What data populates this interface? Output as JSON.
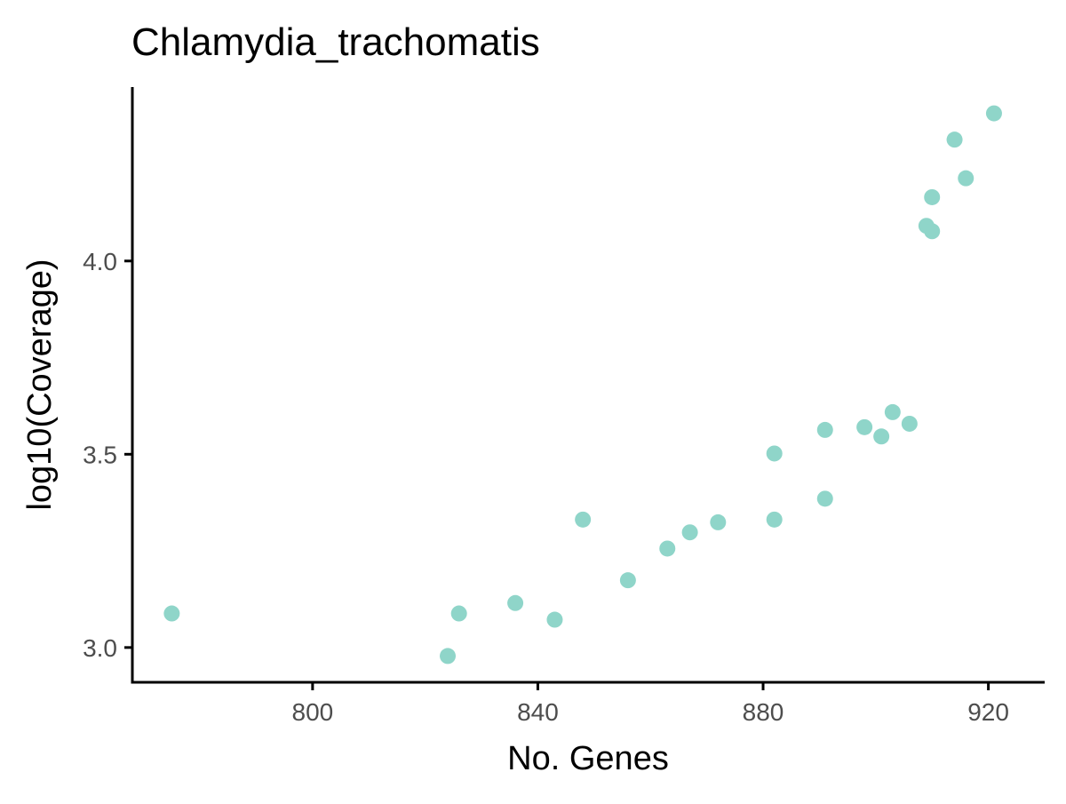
{
  "chart_data": {
    "type": "scatter",
    "title": "Chlamydia_trachomatis",
    "xlabel": "No. Genes",
    "ylabel": "log10(Coverage)",
    "xlim": [
      768,
      930
    ],
    "ylim": [
      2.91,
      4.45
    ],
    "x_ticks": [
      800,
      840,
      880,
      920
    ],
    "y_ticks": [
      3.0,
      3.5,
      4.0
    ],
    "x_tick_labels": [
      "800",
      "840",
      "880",
      "920"
    ],
    "y_tick_labels": [
      "3.0",
      "3.5",
      "4.0"
    ],
    "grid": false,
    "legend": "none",
    "point_color": "#8fd5c9",
    "points": [
      {
        "x": 775,
        "y": 3.088
      },
      {
        "x": 824,
        "y": 2.978
      },
      {
        "x": 826,
        "y": 3.088
      },
      {
        "x": 836,
        "y": 3.115
      },
      {
        "x": 843,
        "y": 3.072
      },
      {
        "x": 848,
        "y": 3.331
      },
      {
        "x": 856,
        "y": 3.174
      },
      {
        "x": 863,
        "y": 3.256
      },
      {
        "x": 867,
        "y": 3.298
      },
      {
        "x": 872,
        "y": 3.324
      },
      {
        "x": 882,
        "y": 3.502
      },
      {
        "x": 882,
        "y": 3.331
      },
      {
        "x": 891,
        "y": 3.563
      },
      {
        "x": 891,
        "y": 3.385
      },
      {
        "x": 898,
        "y": 3.57
      },
      {
        "x": 901,
        "y": 3.546
      },
      {
        "x": 903,
        "y": 3.609
      },
      {
        "x": 906,
        "y": 3.579
      },
      {
        "x": 909,
        "y": 4.091
      },
      {
        "x": 910,
        "y": 4.077
      },
      {
        "x": 910,
        "y": 4.165
      },
      {
        "x": 914,
        "y": 4.314
      },
      {
        "x": 916,
        "y": 4.214
      },
      {
        "x": 921,
        "y": 4.382
      }
    ]
  }
}
